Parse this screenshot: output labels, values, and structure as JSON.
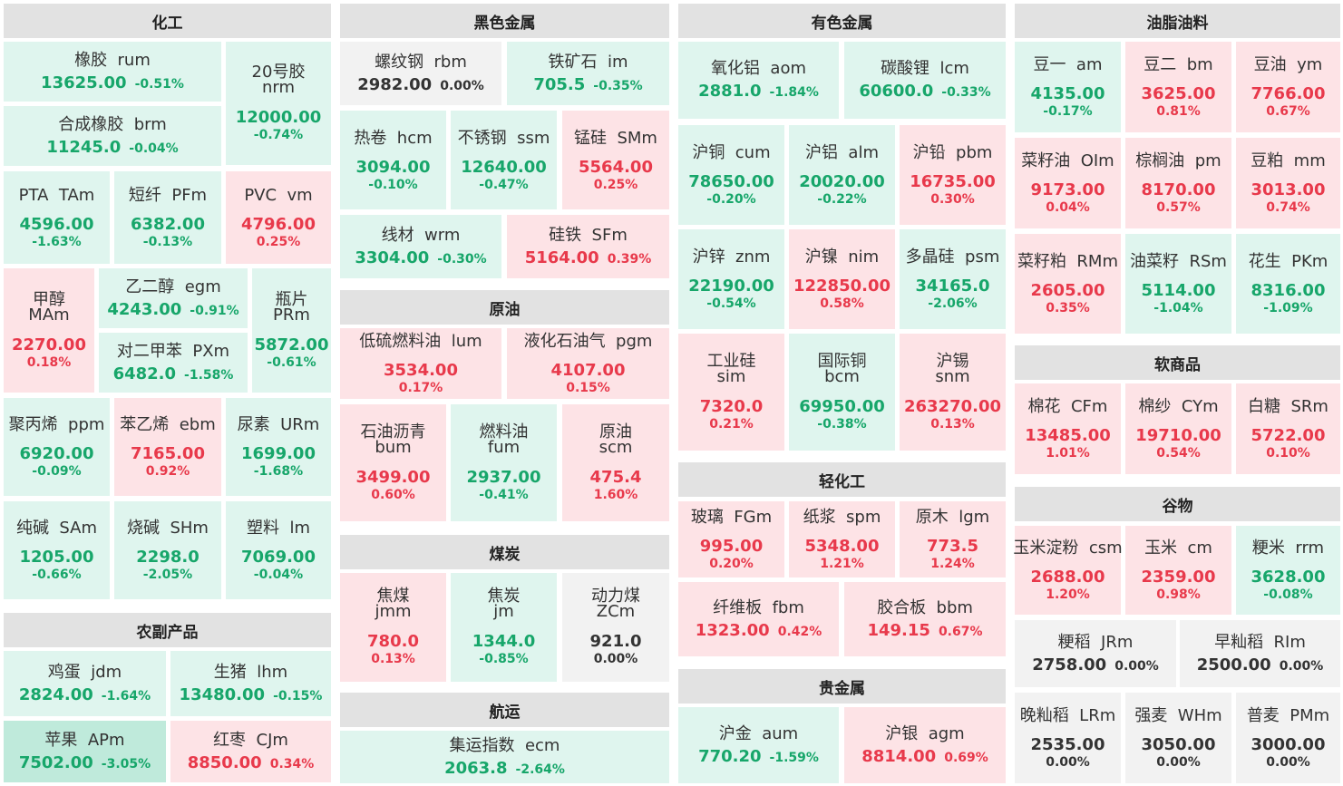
{
  "sections": [
    {
      "id": "chem",
      "title": "化工"
    },
    {
      "id": "agri",
      "title": "农副产品"
    },
    {
      "id": "ferrous",
      "title": "黑色金属"
    },
    {
      "id": "crude",
      "title": "原油"
    },
    {
      "id": "coal",
      "title": "煤炭"
    },
    {
      "id": "shipping",
      "title": "航运"
    },
    {
      "id": "nonferrous",
      "title": "有色金属"
    },
    {
      "id": "lightchem",
      "title": "轻化工"
    },
    {
      "id": "precious",
      "title": "贵金属"
    },
    {
      "id": "oils",
      "title": "油脂油料"
    },
    {
      "id": "softs",
      "title": "软商品"
    },
    {
      "id": "grains",
      "title": "谷物"
    }
  ],
  "contracts": [
    {
      "cn": "橡胶",
      "code": "rum",
      "price": "13625.00",
      "pct": "-0.51%",
      "dir": "down"
    },
    {
      "cn": "20号胶",
      "code": "nrm",
      "price": "12000.00",
      "pct": "-0.74%",
      "dir": "down"
    },
    {
      "cn": "合成橡胶",
      "code": "brm",
      "price": "11245.0",
      "pct": "-0.04%",
      "dir": "down"
    },
    {
      "cn": "PTA",
      "code": "TAm",
      "price": "4596.00",
      "pct": "-1.63%",
      "dir": "down"
    },
    {
      "cn": "短纤",
      "code": "PFm",
      "price": "6382.00",
      "pct": "-0.13%",
      "dir": "down"
    },
    {
      "cn": "PVC",
      "code": "vm",
      "price": "4796.00",
      "pct": "0.25%",
      "dir": "up"
    },
    {
      "cn": "甲醇",
      "code": "MAm",
      "price": "2270.00",
      "pct": "0.18%",
      "dir": "up"
    },
    {
      "cn": "乙二醇",
      "code": "egm",
      "price": "4243.00",
      "pct": "-0.91%",
      "dir": "down"
    },
    {
      "cn": "瓶片",
      "code": "PRm",
      "price": "5872.00",
      "pct": "-0.61%",
      "dir": "down"
    },
    {
      "cn": "对二甲苯",
      "code": "PXm",
      "price": "6482.0",
      "pct": "-1.58%",
      "dir": "down"
    },
    {
      "cn": "聚丙烯",
      "code": "ppm",
      "price": "6920.00",
      "pct": "-0.09%",
      "dir": "down"
    },
    {
      "cn": "苯乙烯",
      "code": "ebm",
      "price": "7165.00",
      "pct": "0.92%",
      "dir": "up"
    },
    {
      "cn": "尿素",
      "code": "URm",
      "price": "1699.00",
      "pct": "-1.68%",
      "dir": "down"
    },
    {
      "cn": "纯碱",
      "code": "SAm",
      "price": "1205.00",
      "pct": "-0.66%",
      "dir": "down"
    },
    {
      "cn": "烧碱",
      "code": "SHm",
      "price": "2298.0",
      "pct": "-2.05%",
      "dir": "down"
    },
    {
      "cn": "塑料",
      "code": "lm",
      "price": "7069.00",
      "pct": "-0.04%",
      "dir": "down"
    },
    {
      "cn": "鸡蛋",
      "code": "jdm",
      "price": "2824.00",
      "pct": "-1.64%",
      "dir": "down"
    },
    {
      "cn": "生猪",
      "code": "lhm",
      "price": "13480.00",
      "pct": "-0.15%",
      "dir": "down"
    },
    {
      "cn": "苹果",
      "code": "APm",
      "price": "7502.00",
      "pct": "-3.05%",
      "dir": "deep"
    },
    {
      "cn": "红枣",
      "code": "CJm",
      "price": "8850.00",
      "pct": "0.34%",
      "dir": "up"
    },
    {
      "cn": "螺纹钢",
      "code": "rbm",
      "price": "2982.00",
      "pct": "0.00%",
      "dir": "flat"
    },
    {
      "cn": "铁矿石",
      "code": "im",
      "price": "705.5",
      "pct": "-0.35%",
      "dir": "down"
    },
    {
      "cn": "热卷",
      "code": "hcm",
      "price": "3094.00",
      "pct": "-0.10%",
      "dir": "down"
    },
    {
      "cn": "不锈钢",
      "code": "ssm",
      "price": "12640.00",
      "pct": "-0.47%",
      "dir": "down"
    },
    {
      "cn": "锰硅",
      "code": "SMm",
      "price": "5564.00",
      "pct": "0.25%",
      "dir": "up"
    },
    {
      "cn": "线材",
      "code": "wrm",
      "price": "3304.00",
      "pct": "-0.30%",
      "dir": "down"
    },
    {
      "cn": "硅铁",
      "code": "SFm",
      "price": "5164.00",
      "pct": "0.39%",
      "dir": "up"
    },
    {
      "cn": "低硫燃料油",
      "code": "lum",
      "price": "3534.00",
      "pct": "0.17%",
      "dir": "up"
    },
    {
      "cn": "液化石油气",
      "code": "pgm",
      "price": "4107.00",
      "pct": "0.15%",
      "dir": "up"
    },
    {
      "cn": "石油沥青",
      "code": "bum",
      "price": "3499.00",
      "pct": "0.60%",
      "dir": "up"
    },
    {
      "cn": "燃料油",
      "code": "fum",
      "price": "2937.00",
      "pct": "-0.41%",
      "dir": "down"
    },
    {
      "cn": "原油",
      "code": "scm",
      "price": "475.4",
      "pct": "1.60%",
      "dir": "up"
    },
    {
      "cn": "焦煤",
      "code": "jmm",
      "price": "780.0",
      "pct": "0.13%",
      "dir": "up"
    },
    {
      "cn": "焦炭",
      "code": "jm",
      "price": "1344.0",
      "pct": "-0.85%",
      "dir": "down"
    },
    {
      "cn": "动力煤",
      "code": "ZCm",
      "price": "921.0",
      "pct": "0.00%",
      "dir": "flat"
    },
    {
      "cn": "集运指数",
      "code": "ecm",
      "price": "2063.8",
      "pct": "-2.64%",
      "dir": "down"
    },
    {
      "cn": "氧化铝",
      "code": "aom",
      "price": "2881.0",
      "pct": "-1.84%",
      "dir": "down"
    },
    {
      "cn": "碳酸锂",
      "code": "lcm",
      "price": "60600.0",
      "pct": "-0.33%",
      "dir": "down"
    },
    {
      "cn": "沪铜",
      "code": "cum",
      "price": "78650.00",
      "pct": "-0.20%",
      "dir": "down"
    },
    {
      "cn": "沪铝",
      "code": "alm",
      "price": "20020.00",
      "pct": "-0.22%",
      "dir": "down"
    },
    {
      "cn": "沪铅",
      "code": "pbm",
      "price": "16735.00",
      "pct": "0.30%",
      "dir": "up"
    },
    {
      "cn": "沪锌",
      "code": "znm",
      "price": "22190.00",
      "pct": "-0.54%",
      "dir": "down"
    },
    {
      "cn": "沪镍",
      "code": "nim",
      "price": "122850.00",
      "pct": "0.58%",
      "dir": "up"
    },
    {
      "cn": "多晶硅",
      "code": "psm",
      "price": "34165.0",
      "pct": "-2.06%",
      "dir": "down"
    },
    {
      "cn": "工业硅",
      "code": "sim",
      "price": "7320.0",
      "pct": "0.21%",
      "dir": "up"
    },
    {
      "cn": "国际铜",
      "code": "bcm",
      "price": "69950.00",
      "pct": "-0.38%",
      "dir": "down"
    },
    {
      "cn": "沪锡",
      "code": "snm",
      "price": "263270.00",
      "pct": "0.13%",
      "dir": "up"
    },
    {
      "cn": "玻璃",
      "code": "FGm",
      "price": "995.00",
      "pct": "0.20%",
      "dir": "up"
    },
    {
      "cn": "纸浆",
      "code": "spm",
      "price": "5348.00",
      "pct": "1.21%",
      "dir": "up"
    },
    {
      "cn": "原木",
      "code": "lgm",
      "price": "773.5",
      "pct": "1.24%",
      "dir": "up"
    },
    {
      "cn": "纤维板",
      "code": "fbm",
      "price": "1323.00",
      "pct": "0.42%",
      "dir": "up"
    },
    {
      "cn": "胶合板",
      "code": "bbm",
      "price": "149.15",
      "pct": "0.67%",
      "dir": "up"
    },
    {
      "cn": "沪金",
      "code": "aum",
      "price": "770.20",
      "pct": "-1.59%",
      "dir": "down"
    },
    {
      "cn": "沪银",
      "code": "agm",
      "price": "8814.00",
      "pct": "0.69%",
      "dir": "up"
    },
    {
      "cn": "豆一",
      "code": "am",
      "price": "4135.00",
      "pct": "-0.17%",
      "dir": "down"
    },
    {
      "cn": "豆二",
      "code": "bm",
      "price": "3625.00",
      "pct": "0.81%",
      "dir": "up"
    },
    {
      "cn": "豆油",
      "code": "ym",
      "price": "7766.00",
      "pct": "0.67%",
      "dir": "up"
    },
    {
      "cn": "菜籽油",
      "code": "OIm",
      "price": "9173.00",
      "pct": "0.04%",
      "dir": "up"
    },
    {
      "cn": "棕榈油",
      "code": "pm",
      "price": "8170.00",
      "pct": "0.57%",
      "dir": "up"
    },
    {
      "cn": "豆粕",
      "code": "mm",
      "price": "3013.00",
      "pct": "0.74%",
      "dir": "up"
    },
    {
      "cn": "菜籽粕",
      "code": "RMm",
      "price": "2605.00",
      "pct": "0.35%",
      "dir": "up"
    },
    {
      "cn": "油菜籽",
      "code": "RSm",
      "price": "5114.00",
      "pct": "-1.04%",
      "dir": "down"
    },
    {
      "cn": "花生",
      "code": "PKm",
      "price": "8316.00",
      "pct": "-1.09%",
      "dir": "down"
    },
    {
      "cn": "棉花",
      "code": "CFm",
      "price": "13485.00",
      "pct": "1.01%",
      "dir": "up"
    },
    {
      "cn": "棉纱",
      "code": "CYm",
      "price": "19710.00",
      "pct": "0.54%",
      "dir": "up"
    },
    {
      "cn": "白糖",
      "code": "SRm",
      "price": "5722.00",
      "pct": "0.10%",
      "dir": "up"
    },
    {
      "cn": "玉米淀粉",
      "code": "csm",
      "price": "2688.00",
      "pct": "1.20%",
      "dir": "up"
    },
    {
      "cn": "玉米",
      "code": "cm",
      "price": "2359.00",
      "pct": "0.98%",
      "dir": "up"
    },
    {
      "cn": "粳米",
      "code": "rrm",
      "price": "3628.00",
      "pct": "-0.08%",
      "dir": "down"
    },
    {
      "cn": "粳稻",
      "code": "JRm",
      "price": "2758.00",
      "pct": "0.00%",
      "dir": "flat"
    },
    {
      "cn": "早籼稻",
      "code": "RIm",
      "price": "2500.00",
      "pct": "0.00%",
      "dir": "flat"
    },
    {
      "cn": "晚籼稻",
      "code": "LRm",
      "price": "2535.00",
      "pct": "0.00%",
      "dir": "flat"
    },
    {
      "cn": "强麦",
      "code": "WHm",
      "price": "3050.00",
      "pct": "0.00%",
      "dir": "flat"
    },
    {
      "cn": "普麦",
      "code": "PMm",
      "price": "3000.00",
      "pct": "0.00%",
      "dir": "flat"
    }
  ]
}
